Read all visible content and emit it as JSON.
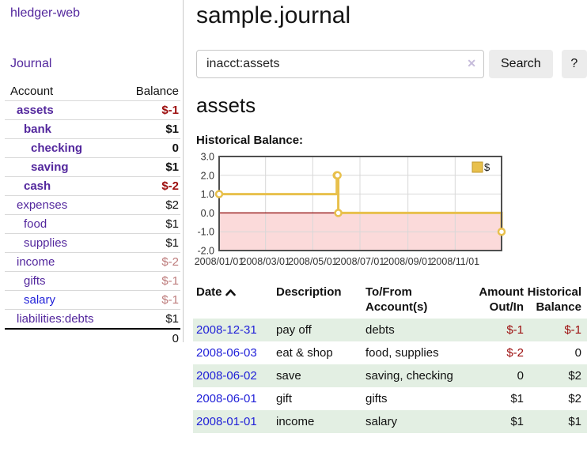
{
  "app": {
    "brand": "hledger-web"
  },
  "colors": {
    "link_purple": "#53279d",
    "link_blue": "#1f1fd8",
    "negative_strong": "#9c0d0d",
    "negative_muted": "#bd7b7b",
    "row_shade_green": "#e3efe3",
    "series_gold": "#e8c04c",
    "zero_line_red": "#8b0000",
    "negative_area_pink": "#fbdada"
  },
  "sidebar": {
    "nav_journal": "Journal",
    "accounts": {
      "header_account": "Account",
      "header_balance": "Balance",
      "rows": [
        {
          "name": "assets",
          "balance": "$-1",
          "depth": 1,
          "bold": true,
          "amount_class": "neg-strong",
          "link_class": "purple"
        },
        {
          "name": "bank",
          "balance": "$1",
          "depth": 2,
          "bold": true,
          "amount_class": "",
          "link_class": "purple"
        },
        {
          "name": "checking",
          "balance": "0",
          "depth": 3,
          "bold": true,
          "amount_class": "",
          "link_class": "purple"
        },
        {
          "name": "saving",
          "balance": "$1",
          "depth": 3,
          "bold": true,
          "amount_class": "",
          "link_class": "purple"
        },
        {
          "name": "cash",
          "balance": "$-2",
          "depth": 2,
          "bold": true,
          "amount_class": "neg-strong",
          "link_class": "purple"
        },
        {
          "name": "expenses",
          "balance": "$2",
          "depth": 1,
          "bold": false,
          "amount_class": "",
          "link_class": "purple"
        },
        {
          "name": "food",
          "balance": "$1",
          "depth": 2,
          "bold": false,
          "amount_class": "",
          "link_class": "purple"
        },
        {
          "name": "supplies",
          "balance": "$1",
          "depth": 2,
          "bold": false,
          "amount_class": "",
          "link_class": "purple"
        },
        {
          "name": "income",
          "balance": "$-2",
          "depth": 1,
          "bold": false,
          "amount_class": "neg-muted",
          "link_class": "purple"
        },
        {
          "name": "gifts",
          "balance": "$-1",
          "depth": 2,
          "bold": false,
          "amount_class": "neg-muted",
          "link_class": "purple"
        },
        {
          "name": "salary",
          "balance": "$-1",
          "depth": 2,
          "bold": false,
          "amount_class": "neg-muted",
          "link_class": "blue"
        },
        {
          "name": "liabilities:debts",
          "balance": "$1",
          "depth": 1,
          "bold": false,
          "amount_class": "",
          "link_class": "purple"
        }
      ],
      "total": "0"
    }
  },
  "main": {
    "title": "sample.journal",
    "search": {
      "value": "inacct:assets",
      "clear_icon": "✕",
      "search_button": "Search",
      "help_button": "?"
    },
    "account_heading": "assets",
    "section_heading": "Historical Balance:"
  },
  "chart_data": {
    "type": "line",
    "step": true,
    "title": "Historical Balance:",
    "series": [
      {
        "name": "$",
        "color": "#e8c04c",
        "points": [
          [
            "2008-01-01",
            1
          ],
          [
            "2008-06-01",
            2
          ],
          [
            "2008-06-02",
            2
          ],
          [
            "2008-06-03",
            0
          ],
          [
            "2008-12-31",
            -1
          ]
        ]
      }
    ],
    "x_start": "2008-01-01",
    "x_end": "2008-12-31",
    "x_tick_labels": [
      "2008/01/01",
      "2008/03/01",
      "2008/05/01",
      "2008/07/01",
      "2008/09/01",
      "2008/11/01"
    ],
    "y_ticks": [
      3.0,
      2.0,
      1.0,
      0.0,
      -1.0,
      -2.0
    ],
    "ylim": [
      -2,
      3
    ],
    "grid": true,
    "legend": {
      "label": "$",
      "position": "top-right"
    },
    "zero_line_color": "#8b0000",
    "negative_fill": "#fbdada"
  },
  "register": {
    "headers": {
      "date": "Date",
      "description": "Description",
      "accounts": "To/From Account(s)",
      "amount": "Amount Out/In",
      "balance": "Historical Balance"
    },
    "sort_icon": "chevron-up",
    "rows": [
      {
        "date": "2008-12-31",
        "description": "pay off",
        "accounts": "debts",
        "amount": "$-1",
        "amount_class": "neg-strong",
        "balance": "$-1",
        "balance_class": "neg-strong",
        "shaded": true
      },
      {
        "date": "2008-06-03",
        "description": "eat & shop",
        "accounts": "food, supplies",
        "amount": "$-2",
        "amount_class": "neg-strong",
        "balance": "0",
        "balance_class": "",
        "shaded": false
      },
      {
        "date": "2008-06-02",
        "description": "save",
        "accounts": "saving, checking",
        "amount": "0",
        "amount_class": "",
        "balance": "$2",
        "balance_class": "",
        "shaded": true
      },
      {
        "date": "2008-06-01",
        "description": "gift",
        "accounts": "gifts",
        "amount": "$1",
        "amount_class": "",
        "balance": "$2",
        "balance_class": "",
        "shaded": false
      },
      {
        "date": "2008-01-01",
        "description": "income",
        "accounts": "salary",
        "amount": "$1",
        "amount_class": "",
        "balance": "$1",
        "balance_class": "",
        "shaded": true
      }
    ]
  }
}
